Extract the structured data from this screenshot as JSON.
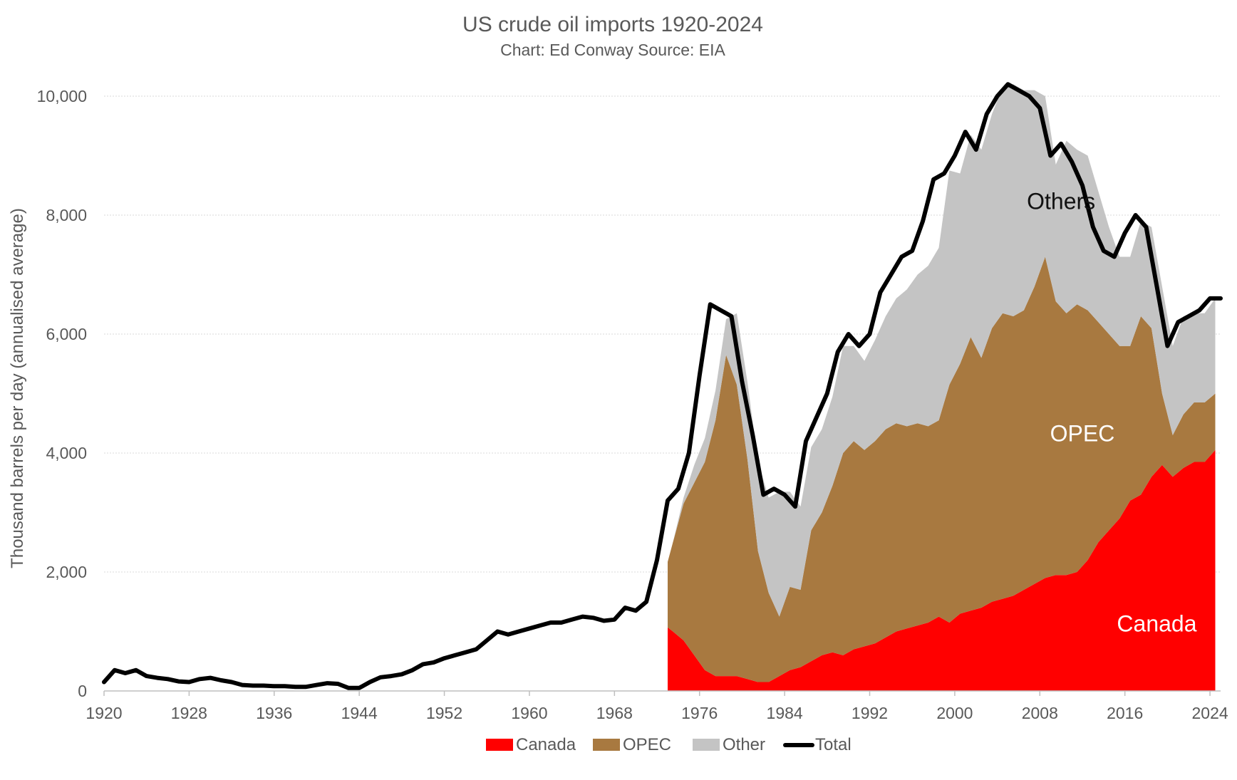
{
  "chart_data": {
    "type": "area",
    "title": "US crude oil imports 1920-2024",
    "subtitle": "Chart: Ed Conway Source: EIA",
    "ylabel": "Thousand barrels per day (annualised average)",
    "xlabel": "",
    "xlim": [
      1920,
      2025
    ],
    "ylim": [
      0,
      10000
    ],
    "x_ticks": [
      1920,
      1928,
      1936,
      1944,
      1952,
      1960,
      1968,
      1976,
      1984,
      1992,
      2000,
      2008,
      2016,
      2024
    ],
    "x_tick_labels": [
      "1920",
      "1928",
      "1936",
      "1944",
      "1952",
      "1960",
      "1968",
      "1976",
      "1984",
      "1992",
      "2000",
      "2008",
      "2016",
      "2024"
    ],
    "y_ticks": [
      0,
      2000,
      4000,
      6000,
      8000,
      10000
    ],
    "y_tick_labels": [
      "0",
      "2,000",
      "4,000",
      "6,000",
      "8,000",
      "10,000"
    ],
    "grid": "horizontal dotted",
    "legend_position": "bottom",
    "colors": {
      "canada": "#ff0000",
      "opec": "#a87940",
      "other": "#c4c4c4",
      "total": "#000000",
      "axis_text": "#595959",
      "grid": "#d9d9d9"
    },
    "series": [
      {
        "name": "Canada",
        "kind": "stacked-area",
        "color": "#ff0000",
        "x": [
          1973.0,
          1973.5,
          1974.5,
          1975.5,
          1976.5,
          1977.5,
          1978.5,
          1979.5,
          1980.5,
          1981.5,
          1982.5,
          1983.5,
          1984.5,
          1985.5,
          1986.5,
          1987.5,
          1988.5,
          1989.5,
          1990.5,
          1991.5,
          1992.5,
          1993.5,
          1994.5,
          1995.5,
          1996.5,
          1997.5,
          1998.5,
          1999.5,
          2000.5,
          2001.5,
          2002.5,
          2003.5,
          2004.5,
          2005.5,
          2006.5,
          2007.5,
          2008.5,
          2009.5,
          2010.5,
          2011.5,
          2012.5,
          2013.5,
          2014.5,
          2015.5,
          2016.5,
          2017.5,
          2018.5,
          2019.5,
          2020.5,
          2021.5,
          2022.5,
          2023.5,
          2024.5
        ],
        "values": [
          1070,
          1000,
          850,
          600,
          350,
          250,
          250,
          250,
          200,
          150,
          150,
          250,
          350,
          400,
          500,
          600,
          650,
          600,
          700,
          750,
          800,
          900,
          1000,
          1050,
          1100,
          1150,
          1250,
          1150,
          1300,
          1350,
          1400,
          1500,
          1550,
          1600,
          1700,
          1800,
          1900,
          1950,
          1950,
          2000,
          2200,
          2500,
          2700,
          2900,
          3200,
          3300,
          3600,
          3800,
          3600,
          3750,
          3850,
          3850,
          4050
        ]
      },
      {
        "name": "OPEC",
        "kind": "stacked-area",
        "color": "#a87940",
        "x": [
          1973.0,
          1973.5,
          1974.5,
          1975.5,
          1976.5,
          1977.5,
          1978.5,
          1979.5,
          1980.5,
          1981.5,
          1982.5,
          1983.5,
          1984.5,
          1985.5,
          1986.5,
          1987.5,
          1988.5,
          1989.5,
          1990.5,
          1991.5,
          1992.5,
          1993.5,
          1994.5,
          1995.5,
          1996.5,
          1997.5,
          1998.5,
          1999.5,
          2000.5,
          2001.5,
          2002.5,
          2003.5,
          2004.5,
          2005.5,
          2006.5,
          2007.5,
          2008.5,
          2009.5,
          2010.5,
          2011.5,
          2012.5,
          2013.5,
          2014.5,
          2015.5,
          2016.5,
          2017.5,
          2018.5,
          2019.5,
          2020.5,
          2021.5,
          2022.5,
          2023.5,
          2024.5
        ],
        "values": [
          1100,
          1500,
          2300,
          2900,
          3500,
          4300,
          5400,
          4900,
          3700,
          2200,
          1500,
          1000,
          1400,
          1300,
          2200,
          2400,
          2800,
          3400,
          3500,
          3300,
          3400,
          3500,
          3500,
          3400,
          3400,
          3300,
          3300,
          4000,
          4200,
          4600,
          4200,
          4600,
          4800,
          4700,
          4700,
          5000,
          5400,
          4600,
          4400,
          4500,
          4200,
          3700,
          3300,
          2900,
          2600,
          3000,
          2500,
          1200,
          700,
          900,
          1000,
          1000,
          950
        ]
      },
      {
        "name": "Other",
        "kind": "stacked-area",
        "color": "#c4c4c4",
        "x": [
          1973.0,
          1973.5,
          1974.5,
          1975.5,
          1976.5,
          1977.5,
          1978.5,
          1979.5,
          1980.5,
          1981.5,
          1982.5,
          1983.5,
          1984.5,
          1985.5,
          1986.5,
          1987.5,
          1988.5,
          1989.5,
          1990.5,
          1991.5,
          1992.5,
          1993.5,
          1994.5,
          1995.5,
          1996.5,
          1997.5,
          1998.5,
          1999.5,
          2000.5,
          2001.5,
          2002.5,
          2003.5,
          2004.5,
          2005.5,
          2006.5,
          2007.5,
          2008.5,
          2009.5,
          2010.5,
          2011.5,
          2012.5,
          2013.5,
          2014.5,
          2015.5,
          2016.5,
          2017.5,
          2018.5,
          2019.5,
          2020.5,
          2021.5,
          2022.5,
          2023.5,
          2024.5
        ],
        "values": [
          0,
          0,
          100,
          300,
          400,
          500,
          600,
          1200,
          1300,
          1500,
          1600,
          2100,
          1600,
          1400,
          1400,
          1400,
          1500,
          1800,
          1600,
          1500,
          1700,
          1900,
          2100,
          2300,
          2500,
          2700,
          2900,
          3600,
          3200,
          3400,
          3500,
          3600,
          3800,
          3900,
          3700,
          3300,
          2700,
          2300,
          2900,
          2600,
          2600,
          2200,
          1800,
          1500,
          1500,
          1600,
          1700,
          1800,
          1500,
          1650,
          1500,
          1500,
          1600
        ]
      },
      {
        "name": "Total",
        "kind": "line",
        "color": "#000000",
        "x": [
          1920,
          1921,
          1922,
          1923,
          1924,
          1925,
          1926,
          1927,
          1928,
          1929,
          1930,
          1931,
          1932,
          1933,
          1934,
          1935,
          1936,
          1937,
          1938,
          1939,
          1940,
          1941,
          1942,
          1943,
          1944,
          1945,
          1946,
          1947,
          1948,
          1949,
          1950,
          1951,
          1952,
          1953,
          1954,
          1955,
          1956,
          1957,
          1958,
          1959,
          1960,
          1961,
          1962,
          1963,
          1964,
          1965,
          1966,
          1967,
          1968,
          1969,
          1970,
          1971,
          1972,
          1973,
          1974,
          1975,
          1976,
          1977,
          1978,
          1979,
          1980,
          1981,
          1982,
          1983,
          1984,
          1985,
          1986,
          1987,
          1988,
          1989,
          1990,
          1991,
          1992,
          1993,
          1994,
          1995,
          1996,
          1997,
          1998,
          1999,
          2000,
          2001,
          2002,
          2003,
          2004,
          2005,
          2006,
          2007,
          2008,
          2009,
          2010,
          2011,
          2012,
          2013,
          2014,
          2015,
          2016,
          2017,
          2018,
          2019,
          2020,
          2021,
          2022,
          2023,
          2024,
          2025
        ],
        "values": [
          150,
          350,
          300,
          350,
          250,
          220,
          200,
          160,
          150,
          200,
          220,
          180,
          150,
          100,
          90,
          90,
          80,
          80,
          70,
          70,
          100,
          130,
          120,
          50,
          50,
          150,
          230,
          250,
          280,
          350,
          450,
          480,
          550,
          600,
          650,
          700,
          850,
          1000,
          950,
          1000,
          1050,
          1100,
          1150,
          1150,
          1200,
          1250,
          1230,
          1180,
          1200,
          1400,
          1350,
          1500,
          2200,
          3200,
          3400,
          4000,
          5300,
          6500,
          6400,
          6300,
          5200,
          4300,
          3300,
          3400,
          3300,
          3100,
          4200,
          4600,
          5000,
          5700,
          6000,
          5800,
          6000,
          6700,
          7000,
          7300,
          7400,
          7900,
          8600,
          8700,
          9000,
          9400,
          9100,
          9700,
          10000,
          10200,
          10100,
          10000,
          9800,
          9000,
          9200,
          8900,
          8500,
          7800,
          7400,
          7300,
          7700,
          8000,
          7800,
          6800,
          5800,
          6200,
          6300,
          6400,
          6600,
          6600
        ]
      }
    ],
    "annotations": [
      {
        "text": "Others",
        "x": 2010,
        "y": 8100,
        "color": "#111111"
      },
      {
        "text": "OPEC",
        "x": 2012,
        "y": 4200,
        "color": "#ffffff"
      },
      {
        "text": "Canada",
        "x": 2019,
        "y": 1000,
        "color": "#ffffff"
      }
    ]
  }
}
